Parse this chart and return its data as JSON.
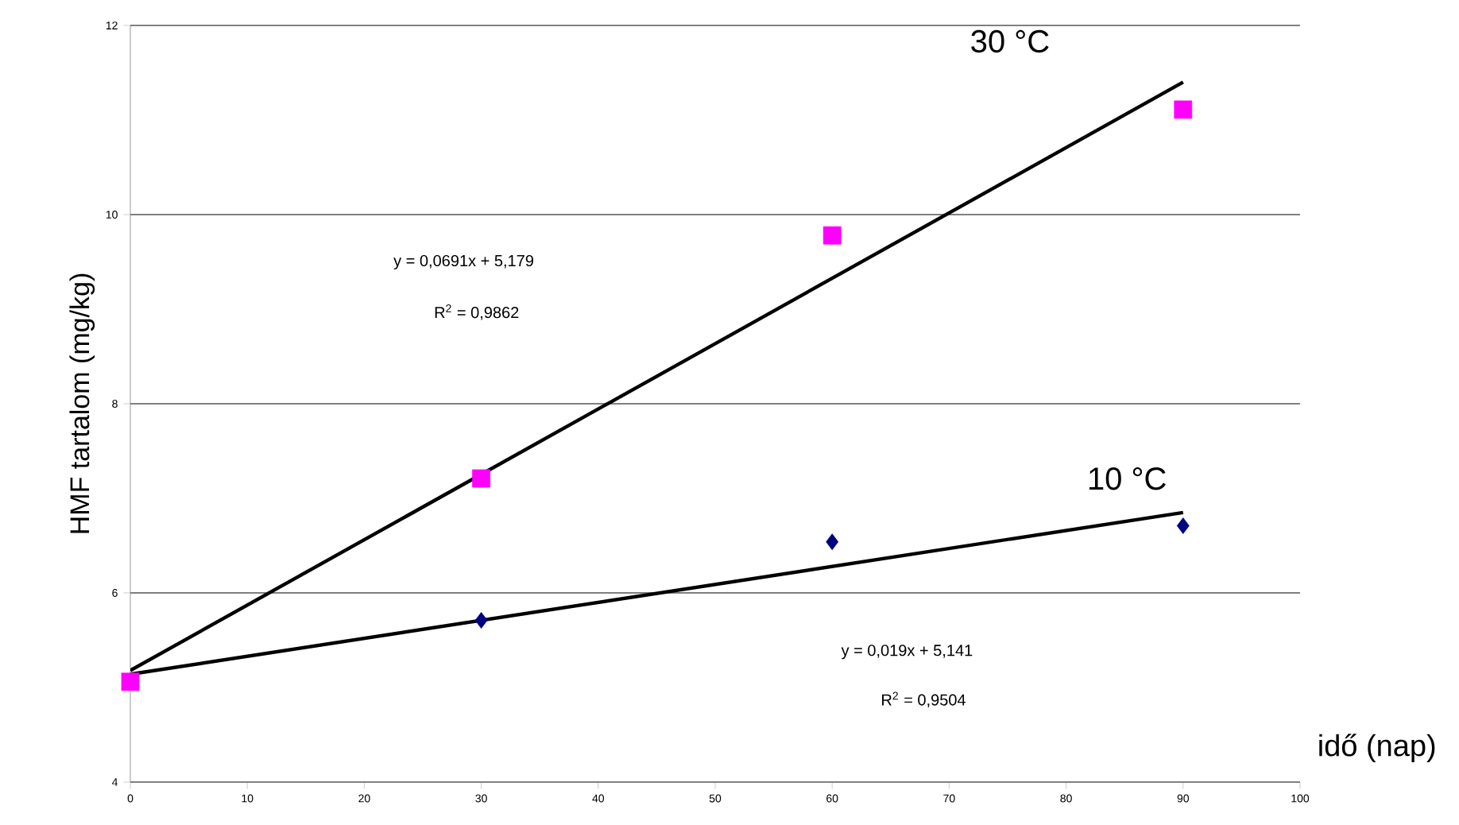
{
  "chart_data": {
    "type": "scatter",
    "xlabel": "idő (nap)",
    "ylabel": "HMF tartalom (mg/kg)",
    "xlim": [
      0,
      100
    ],
    "xticks": [
      0,
      10,
      20,
      30,
      40,
      50,
      60,
      70,
      80,
      90,
      100
    ],
    "ylim": [
      4,
      12
    ],
    "yticks": [
      4,
      6,
      8,
      10,
      12
    ],
    "grid": "y",
    "series": [
      {
        "type": "line",
        "color": "#000000",
        "marker": "none",
        "x": [
          0,
          90
        ],
        "values": [
          5.18,
          11.4
        ]
      },
      {
        "type": "line",
        "color": "#000000",
        "marker": "none",
        "x": [
          0,
          90
        ],
        "values": [
          5.14,
          6.85
        ]
      },
      {
        "color": "#000080",
        "marker": "diamond",
        "x": [
          30,
          60,
          90
        ],
        "values": [
          5.71,
          6.54,
          6.71
        ]
      },
      {
        "color": "#ff00ff",
        "marker": "square",
        "x": [
          0,
          30,
          60,
          90
        ],
        "values": [
          5.06,
          7.21,
          9.78,
          11.11
        ]
      }
    ],
    "annotations": [
      "30 °C",
      "10 °C",
      "y = 0,0691x + 5,179",
      "R$^{2}$ = 0,9862",
      "y = 0,019x + 5,141",
      "R$^{2}$ = 0,9504"
    ]
  }
}
